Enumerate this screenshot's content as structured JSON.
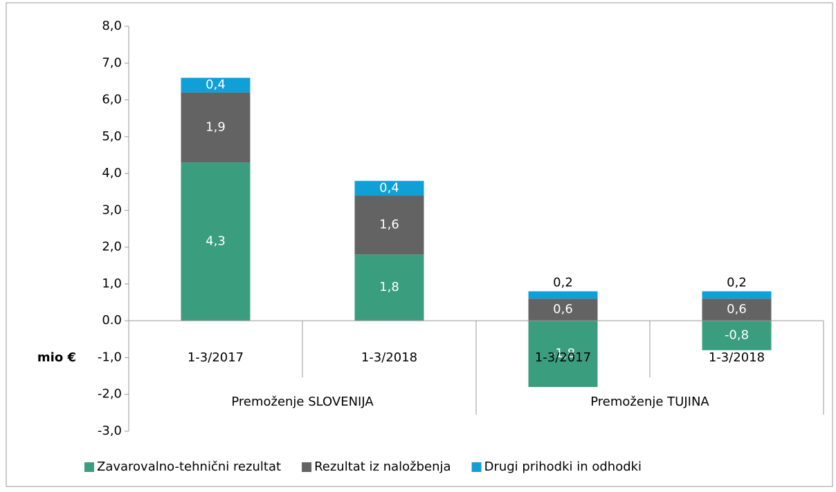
{
  "chart_data": {
    "type": "stacked_bar",
    "ylabel": "mio €",
    "categories": [
      "1-3/2017",
      "1-3/2018",
      "1-3/2017",
      "1-3/2018"
    ],
    "groups": [
      {
        "label": "Premoženje SLOVENIJA",
        "span": 2
      },
      {
        "label": "Premoženje TUJINA",
        "span": 2
      }
    ],
    "series": [
      {
        "name": "Zavarovalno-tehnični rezultat",
        "color": "#3a9e7e",
        "values": [
          4.3,
          1.8,
          -1.8,
          -0.8
        ],
        "value_labels": [
          "4,3",
          "1,8",
          "-1,8",
          "-0,8"
        ]
      },
      {
        "name": "Rezultat iz naložbenja",
        "color": "#636363",
        "values": [
          1.9,
          1.6,
          0.6,
          0.6
        ],
        "value_labels": [
          "1,9",
          "1,6",
          "0,6",
          "0,6"
        ]
      },
      {
        "name": "Drugi prihodki in odhodki",
        "color": "#0fa0d8",
        "values": [
          0.4,
          0.4,
          0.2,
          0.2
        ],
        "value_labels": [
          "0,4",
          "0,4",
          "0,2",
          "0,2"
        ]
      }
    ],
    "ylim": [
      -3,
      8
    ],
    "yticks": [
      {
        "value": 8,
        "label": "8,0"
      },
      {
        "value": 7,
        "label": "7,0"
      },
      {
        "value": 6,
        "label": "6,0"
      },
      {
        "value": 5,
        "label": "5,0"
      },
      {
        "value": 4,
        "label": "4,0"
      },
      {
        "value": 3,
        "label": "3,0"
      },
      {
        "value": 2,
        "label": "2,0"
      },
      {
        "value": 1,
        "label": "1,0"
      },
      {
        "value": 0,
        "label": "0.0"
      },
      {
        "value": -1,
        "label": "-1,0"
      },
      {
        "value": -2,
        "label": "-2,0"
      },
      {
        "value": -3,
        "label": "-3,0"
      }
    ],
    "legend": "bottom"
  }
}
